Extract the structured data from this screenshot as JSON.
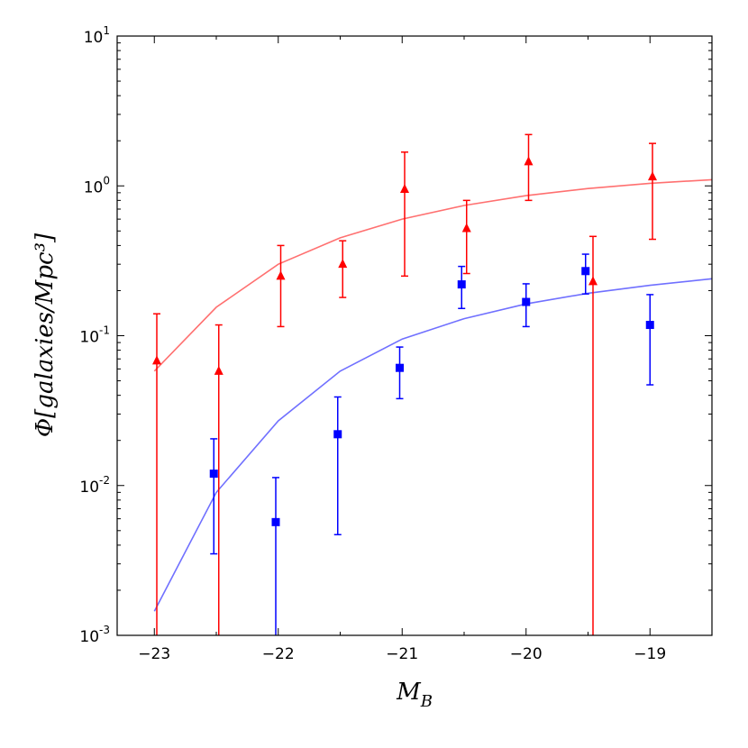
{
  "chart_data": {
    "type": "scatter",
    "title": "",
    "xlabel": "M_B",
    "ylabel": "Φ[galaxies/Mpc³]",
    "xlim": [
      -23.3,
      -18.5
    ],
    "ylim": [
      0.001,
      10
    ],
    "yscale": "log",
    "grid": false,
    "x_ticks": [
      -23,
      -22,
      -21,
      -20,
      -19
    ],
    "x_tick_labels": [
      "−23",
      "−22",
      "−21",
      "−20",
      "−19"
    ],
    "y_ticks": [
      0.001,
      0.01,
      0.1,
      1,
      10
    ],
    "y_tick_bases": [
      "10",
      "10",
      "10",
      "10",
      "10"
    ],
    "y_tick_exps": [
      "-3",
      "-2",
      "-1",
      "0",
      "1"
    ],
    "series": [
      {
        "name": "red points",
        "marker": "triangle",
        "color": "#ff0000",
        "points": [
          {
            "x": -22.98,
            "y": 0.068,
            "ylo": 0.0008,
            "yhi": 0.14
          },
          {
            "x": -22.48,
            "y": 0.058,
            "ylo": 0.0008,
            "yhi": 0.118
          },
          {
            "x": -21.98,
            "y": 0.25,
            "ylo": 0.115,
            "yhi": 0.4
          },
          {
            "x": -21.48,
            "y": 0.3,
            "ylo": 0.18,
            "yhi": 0.43
          },
          {
            "x": -20.98,
            "y": 0.95,
            "ylo": 0.25,
            "yhi": 1.68
          },
          {
            "x": -20.48,
            "y": 0.52,
            "ylo": 0.26,
            "yhi": 0.8
          },
          {
            "x": -19.98,
            "y": 1.45,
            "ylo": 0.8,
            "yhi": 2.2
          },
          {
            "x": -19.46,
            "y": 0.23,
            "ylo": 0.0008,
            "yhi": 0.46
          },
          {
            "x": -18.98,
            "y": 1.15,
            "ylo": 0.44,
            "yhi": 1.92
          }
        ]
      },
      {
        "name": "blue points",
        "marker": "square",
        "color": "#0000ff",
        "points": [
          {
            "x": -22.52,
            "y": 0.012,
            "ylo": 0.0035,
            "yhi": 0.0205
          },
          {
            "x": -22.02,
            "y": 0.0057,
            "ylo": 0.0008,
            "yhi": 0.0113
          },
          {
            "x": -21.52,
            "y": 0.022,
            "ylo": 0.0047,
            "yhi": 0.039
          },
          {
            "x": -21.02,
            "y": 0.061,
            "ylo": 0.038,
            "yhi": 0.084
          },
          {
            "x": -20.52,
            "y": 0.22,
            "ylo": 0.152,
            "yhi": 0.29
          },
          {
            "x": -20.0,
            "y": 0.168,
            "ylo": 0.115,
            "yhi": 0.222
          },
          {
            "x": -19.52,
            "y": 0.27,
            "ylo": 0.19,
            "yhi": 0.35
          },
          {
            "x": -19.0,
            "y": 0.118,
            "ylo": 0.047,
            "yhi": 0.188
          }
        ]
      }
    ],
    "lines": [
      {
        "name": "red model",
        "color": "#ff7070",
        "x": [
          -23.0,
          -22.5,
          -22.0,
          -21.5,
          -21.0,
          -20.5,
          -20.0,
          -19.5,
          -19.0,
          -18.5
        ],
        "y": [
          0.058,
          0.155,
          0.3,
          0.45,
          0.6,
          0.74,
          0.86,
          0.96,
          1.04,
          1.1
        ]
      },
      {
        "name": "blue model",
        "color": "#7070ff",
        "x": [
          -23.0,
          -22.5,
          -22.0,
          -21.5,
          -21.0,
          -20.5,
          -20.0,
          -19.5,
          -19.0,
          -18.5
        ],
        "y": [
          0.00145,
          0.009,
          0.027,
          0.058,
          0.095,
          0.13,
          0.163,
          0.192,
          0.217,
          0.24
        ]
      }
    ]
  }
}
